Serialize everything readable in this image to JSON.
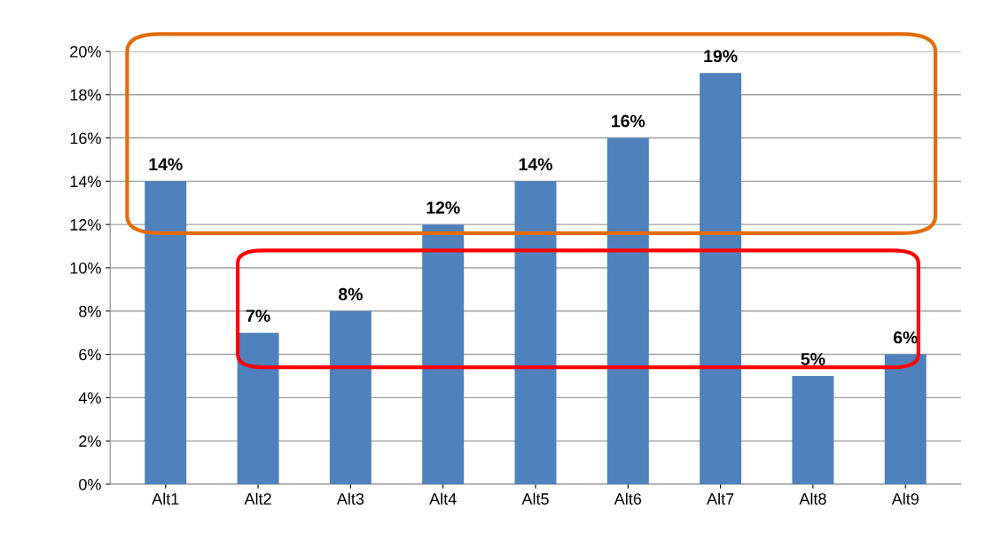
{
  "chart_data": {
    "type": "bar",
    "categories": [
      "Alt1",
      "Alt2",
      "Alt3",
      "Alt4",
      "Alt5",
      "Alt6",
      "Alt7",
      "Alt8",
      "Alt9"
    ],
    "values": [
      14,
      7,
      8,
      12,
      14,
      16,
      19,
      5,
      6
    ],
    "value_labels": [
      "14%",
      "7%",
      "8%",
      "12%",
      "14%",
      "16%",
      "19%",
      "5%",
      "6%"
    ],
    "color": "#4f81bd",
    "ylim": [
      0,
      20
    ],
    "yticks": [
      {
        "value": 0,
        "label": "0%"
      },
      {
        "value": 2,
        "label": "2%"
      },
      {
        "value": 4,
        "label": "4%"
      },
      {
        "value": 6,
        "label": "6%"
      },
      {
        "value": 8,
        "label": "8%"
      },
      {
        "value": 10,
        "label": "10%"
      },
      {
        "value": 12,
        "label": "12%"
      },
      {
        "value": 14,
        "label": "14%"
      },
      {
        "value": 16,
        "label": "16%"
      },
      {
        "value": 18,
        "label": "18%"
      },
      {
        "value": 20,
        "label": "20%"
      }
    ],
    "grid": "y",
    "legend": false
  }
}
